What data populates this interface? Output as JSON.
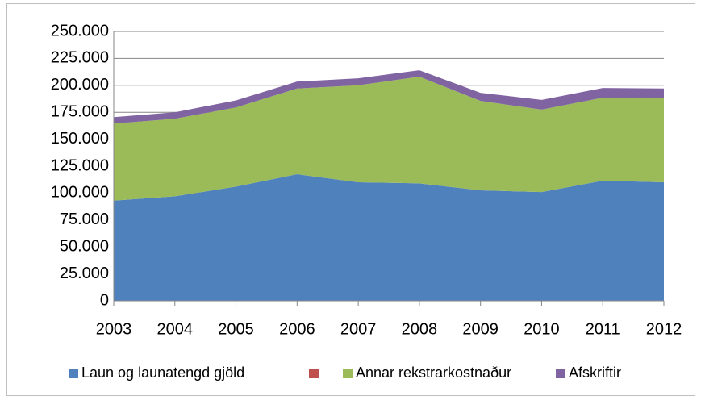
{
  "chart_data": {
    "type": "stacked_area",
    "x": [
      2003,
      2004,
      2005,
      2006,
      2007,
      2008,
      2009,
      2010,
      2011,
      2012
    ],
    "xlim": [
      2003,
      2012
    ],
    "xticks": [
      2003,
      2004,
      2005,
      2006,
      2007,
      2008,
      2009,
      2010,
      2011,
      2012
    ],
    "ylim": [
      0,
      250000
    ],
    "yticks": [
      0,
      {
        "value": 25000,
        "label": "25.000"
      },
      {
        "value": 50000,
        "label": "50.000"
      },
      {
        "value": 75000,
        "label": "75.000"
      },
      {
        "value": 100000,
        "label": "100.000"
      },
      {
        "value": 125000,
        "label": "125.000"
      },
      {
        "value": 150000,
        "label": "150.000"
      },
      {
        "value": 175000,
        "label": "175.000"
      },
      {
        "value": 200000,
        "label": "200.000"
      },
      {
        "value": 225000,
        "label": "225.000"
      },
      {
        "value": 250000,
        "label": "250.000"
      }
    ],
    "grid": true,
    "legend": "bottom",
    "series": [
      {
        "name": "Laun og launatengd gjöld",
        "color": "#4f81bd",
        "values": [
          93000,
          97000,
          106000,
          117500,
          110000,
          109000,
          102500,
          101000,
          111500,
          110000
        ]
      },
      {
        "name": null,
        "color": "#c0504d",
        "values": [
          0,
          0,
          0,
          0,
          0,
          0,
          0,
          0,
          0,
          0
        ]
      },
      {
        "name": "Annar rekstrarkostnaður",
        "color": "#9bbb59",
        "values": [
          71500,
          72000,
          73500,
          79500,
          90000,
          99000,
          83000,
          76500,
          77000,
          78500
        ]
      },
      {
        "name": "Afskriftir",
        "color": "#8064a2",
        "values": [
          6000,
          6000,
          6500,
          6500,
          6500,
          6000,
          7500,
          9000,
          9000,
          8500
        ]
      }
    ]
  }
}
